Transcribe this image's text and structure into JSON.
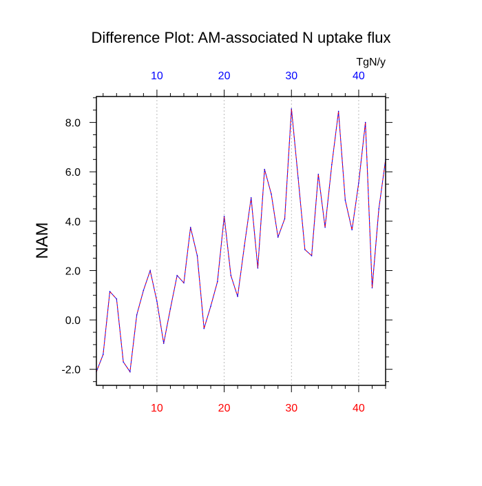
{
  "chart_data": {
    "type": "line",
    "title": "Difference Plot: AM-associated N uptake flux",
    "ylabel": "NAM",
    "units": "TgN/y",
    "xlim": [
      1,
      44
    ],
    "ylim": [
      -2.65,
      9.05
    ],
    "x_ticks": [
      10,
      20,
      30,
      40
    ],
    "x_tick_labels": [
      "10",
      "20",
      "30",
      "40"
    ],
    "y_ticks": [
      -2,
      0,
      2,
      4,
      6,
      8
    ],
    "y_tick_labels": [
      "-2.0",
      "0.0",
      "2.0",
      "4.0",
      "6.0",
      "8.0"
    ],
    "grid": "vertical dotted at major x ticks",
    "legend": "none",
    "colors": {
      "bottom_tick_labels": "#ff0000",
      "top_tick_labels": "#0000ff",
      "line_primary": "#0000ff",
      "line_overlay": "#ff0000",
      "grid": "#aaaaaa",
      "axis": "#000000"
    },
    "series": [
      {
        "x": [
          1,
          2,
          3,
          4,
          5,
          6,
          7,
          8,
          9,
          10,
          11,
          12,
          13,
          14,
          15,
          16,
          17,
          18,
          19,
          20,
          21,
          22,
          23,
          24,
          25,
          26,
          27,
          28,
          29,
          30,
          31,
          32,
          33,
          34,
          35,
          36,
          37,
          38,
          39,
          40,
          41,
          42,
          43,
          44
        ],
        "values": [
          -2.1,
          -1.4,
          1.15,
          0.85,
          -1.7,
          -2.1,
          0.2,
          1.2,
          2.0,
          0.75,
          -0.95,
          0.45,
          1.8,
          1.5,
          3.75,
          2.6,
          -0.35,
          0.55,
          1.55,
          4.2,
          1.8,
          0.95,
          3.0,
          4.95,
          2.1,
          6.1,
          5.1,
          3.35,
          4.1,
          8.55,
          5.75,
          2.85,
          2.6,
          5.9,
          3.75,
          6.3,
          8.45,
          4.85,
          3.65,
          5.55,
          8.0,
          1.3,
          4.5,
          6.5
        ]
      }
    ]
  }
}
